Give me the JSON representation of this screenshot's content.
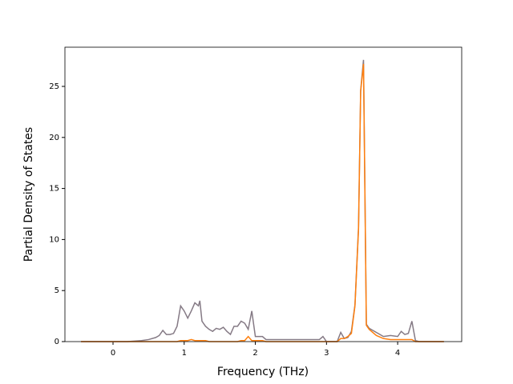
{
  "chart_data": {
    "type": "line",
    "xlabel": "Frequency (THz)",
    "ylabel": "Partial Density of States",
    "x": [
      -0.45,
      0.2,
      0.4,
      0.5,
      0.6,
      0.65,
      0.7,
      0.75,
      0.8,
      0.85,
      0.9,
      0.95,
      1.0,
      1.05,
      1.1,
      1.15,
      1.2,
      1.22,
      1.25,
      1.3,
      1.35,
      1.4,
      1.45,
      1.5,
      1.55,
      1.6,
      1.65,
      1.7,
      1.75,
      1.8,
      1.85,
      1.9,
      1.95,
      2.0,
      2.1,
      2.15,
      2.9,
      2.95,
      3.0,
      3.15,
      3.2,
      3.25,
      3.3,
      3.35,
      3.4,
      3.45,
      3.48,
      3.52,
      3.56,
      3.6,
      3.7,
      3.8,
      3.9,
      4.0,
      4.05,
      4.1,
      4.15,
      4.2,
      4.25,
      4.3,
      4.65
    ],
    "series": [
      {
        "color": "#857a85",
        "values": [
          0,
          0,
          0.1,
          0.2,
          0.4,
          0.6,
          1.1,
          0.7,
          0.7,
          0.8,
          1.5,
          3.5,
          3.0,
          2.3,
          3.0,
          3.8,
          3.5,
          4.0,
          2.0,
          1.5,
          1.2,
          1.0,
          1.3,
          1.2,
          1.4,
          1.0,
          0.7,
          1.5,
          1.5,
          2.0,
          1.8,
          1.2,
          3.0,
          0.5,
          0.5,
          0.2,
          0.2,
          0.5,
          0,
          0,
          0.9,
          0.3,
          0.4,
          1.0,
          3.6,
          11.2,
          24.6,
          27.6,
          1.7,
          1.3,
          0.9,
          0.5,
          0.6,
          0.5,
          1.0,
          0.7,
          0.8,
          2.0,
          0.1,
          0,
          0
        ]
      },
      {
        "color": "#ff7f0e",
        "values": [
          0,
          0,
          0,
          0,
          0,
          0,
          0,
          0,
          0,
          0,
          0,
          0.1,
          0.1,
          0.1,
          0.2,
          0.1,
          0.1,
          0.1,
          0.1,
          0.1,
          0,
          0,
          0,
          0,
          0,
          0,
          0,
          0,
          0,
          0.1,
          0.1,
          0.5,
          0.1,
          0.1,
          0.1,
          0,
          0,
          0,
          0,
          0,
          0.3,
          0.3,
          0.5,
          0.8,
          3.5,
          11,
          24.5,
          27.2,
          1.6,
          1.2,
          0.6,
          0.3,
          0.2,
          0.2,
          0.2,
          0.2,
          0.2,
          0.2,
          0,
          0,
          0
        ]
      }
    ],
    "xlim": [
      -0.676,
      4.9
    ],
    "ylim": [
      0,
      28.84
    ],
    "xticks": [
      0,
      1,
      2,
      3,
      4
    ],
    "yticks": [
      0,
      5,
      10,
      15,
      20,
      25
    ]
  }
}
